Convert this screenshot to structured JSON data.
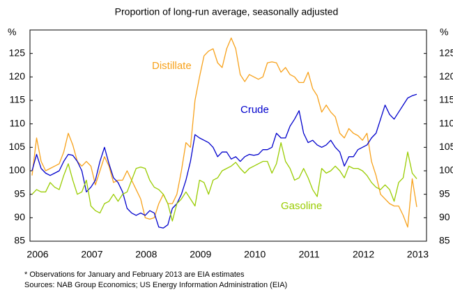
{
  "chart_data": {
    "type": "line",
    "title": "Proportion of long-run average, seasonally adjusted",
    "y_label": "%",
    "y2_label": "%",
    "categories": [
      "2006",
      null,
      null,
      null,
      null,
      null,
      null,
      null,
      null,
      null,
      null,
      null,
      "2007",
      null,
      null,
      null,
      null,
      null,
      null,
      null,
      null,
      null,
      null,
      null,
      "2008",
      null,
      null,
      null,
      null,
      null,
      null,
      null,
      null,
      null,
      null,
      null,
      "2009",
      null,
      null,
      null,
      null,
      null,
      null,
      null,
      null,
      null,
      null,
      null,
      "2010",
      null,
      null,
      null,
      null,
      null,
      null,
      null,
      null,
      null,
      null,
      null,
      "2011",
      null,
      null,
      null,
      null,
      null,
      null,
      null,
      null,
      null,
      null,
      null,
      "2012",
      null,
      null,
      null,
      null,
      null,
      null,
      null,
      null,
      null,
      null,
      null,
      "2013",
      null
    ],
    "series": [
      {
        "name": "Distillate",
        "color": "#f7a11a",
        "values": [
          99,
          107,
          102,
          100,
          100.5,
          101,
          101.5,
          104,
          108,
          105.5,
          102,
          101,
          102,
          101,
          97,
          100,
          103,
          101,
          97.5,
          98,
          98,
          100,
          98,
          96,
          94,
          90,
          89.7,
          90,
          93,
          95,
          93,
          93,
          95,
          100,
          106,
          105,
          115,
          120,
          124.5,
          125.5,
          126,
          123,
          122,
          126,
          128.3,
          126,
          120.5,
          119,
          120.5,
          120,
          119.5,
          120,
          123,
          123.2,
          123,
          121,
          122,
          120.5,
          120,
          118.8,
          118.8,
          121,
          117.5,
          116,
          112.5,
          114,
          112.5,
          111.5,
          108,
          107,
          109,
          108,
          107.5,
          106.5,
          108,
          102,
          99,
          95,
          94,
          93,
          92.5,
          92.5,
          90.5,
          88,
          98.3,
          92.3
        ]
      },
      {
        "name": "Crude",
        "color": "#0000cc",
        "values": [
          100,
          103.5,
          100.5,
          99.5,
          99,
          99.5,
          100,
          102,
          103.5,
          103.3,
          102,
          100,
          95.5,
          96.5,
          98,
          102,
          105,
          101.5,
          98.5,
          97.5,
          95.5,
          92,
          91,
          90.5,
          91,
          90.5,
          91.5,
          91,
          88,
          87.8,
          88.5,
          92,
          93,
          95,
          98,
          102,
          107.7,
          107,
          106.5,
          106,
          105,
          103,
          104,
          104,
          102.5,
          103,
          102,
          103,
          103.5,
          103.3,
          103.5,
          104.5,
          104.5,
          105,
          108,
          107,
          107,
          109.5,
          111,
          112.8,
          108,
          106,
          106.5,
          105.5,
          105,
          105.5,
          106.5,
          105,
          104,
          101,
          103,
          103,
          104.5,
          105,
          105.5,
          107,
          108,
          111,
          114,
          112,
          111,
          112.5,
          114,
          115.5,
          116,
          116.3
        ]
      },
      {
        "name": "Gasoline",
        "color": "#99cc00",
        "values": [
          95,
          96,
          95.5,
          95.5,
          97.5,
          96.5,
          96,
          99,
          101.5,
          98,
          95,
          95.5,
          98,
          92.5,
          91.5,
          91,
          93,
          93.5,
          95,
          93.5,
          95,
          95.5,
          98,
          100.5,
          100.8,
          100.5,
          98,
          96.5,
          96,
          95,
          93,
          89.3,
          93,
          94,
          95.5,
          94,
          92.5,
          98,
          97.5,
          95,
          98,
          98.5,
          100,
          100.5,
          101,
          101.8,
          100.5,
          99.5,
          100.5,
          101,
          101.5,
          102,
          102,
          99.5,
          101.5,
          106,
          102,
          100.5,
          98,
          98.5,
          100.5,
          98.5,
          96,
          94.5,
          100.5,
          99.5,
          100,
          101,
          100,
          98.5,
          101,
          100.5,
          100.5,
          100,
          99,
          97.5,
          96.5,
          96,
          97,
          96,
          93.5,
          97.5,
          98.5,
          104,
          99.5,
          98.3
        ]
      }
    ],
    "ylim": [
      85,
      130
    ],
    "yticks": [
      85,
      90,
      95,
      100,
      105,
      110,
      115,
      120,
      125
    ],
    "y2lim": [
      85,
      130
    ],
    "y2ticks": [
      85,
      90,
      95,
      100,
      105,
      110,
      115,
      120,
      125
    ],
    "notes": [
      "* Observations for January and February 2013 are EIA estimates",
      "Sources: NAB Group Economics; US Energy Information Administration (EIA)"
    ]
  }
}
